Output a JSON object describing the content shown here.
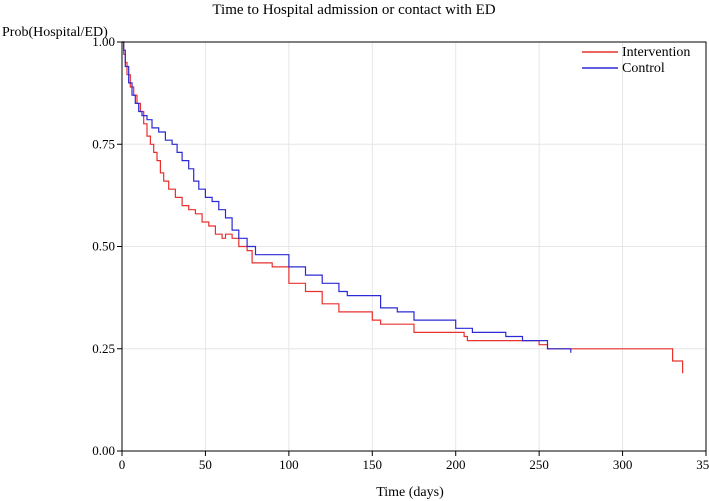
{
  "chart_data": {
    "type": "line",
    "step": true,
    "title": "Time to Hospital admission or contact with ED",
    "xlabel": "Time (days)",
    "ylabel": "Prob(Hospital/ED)",
    "xlim": [
      0,
      350
    ],
    "ylim": [
      0,
      1
    ],
    "xticks": [
      0,
      50,
      100,
      150,
      200,
      250,
      300,
      350
    ],
    "yticks": [
      "0.00",
      "0.25",
      "0.50",
      "0.75",
      "1.00"
    ],
    "grid": true,
    "legend_position": "top-right",
    "series": [
      {
        "name": "Intervention",
        "color": "#e8312f",
        "x": [
          0,
          1,
          2,
          3,
          5,
          7,
          9,
          11,
          13,
          15,
          17,
          19,
          21,
          23,
          25,
          28,
          32,
          36,
          40,
          44,
          48,
          52,
          56,
          60,
          62,
          66,
          70,
          75,
          78,
          90,
          100,
          110,
          120,
          130,
          150,
          155,
          175,
          205,
          207,
          250,
          255,
          323,
          330,
          336
        ],
        "y": [
          1.0,
          0.97,
          0.95,
          0.92,
          0.89,
          0.87,
          0.85,
          0.83,
          0.8,
          0.77,
          0.75,
          0.73,
          0.71,
          0.68,
          0.66,
          0.64,
          0.62,
          0.6,
          0.59,
          0.58,
          0.56,
          0.55,
          0.53,
          0.52,
          0.53,
          0.52,
          0.5,
          0.49,
          0.46,
          0.45,
          0.41,
          0.39,
          0.36,
          0.34,
          0.32,
          0.31,
          0.29,
          0.28,
          0.27,
          0.26,
          0.25,
          0.25,
          0.22,
          0.19
        ]
      },
      {
        "name": "Control",
        "color": "#2a2ad6",
        "x": [
          0,
          1,
          2,
          4,
          6,
          8,
          10,
          12,
          15,
          18,
          22,
          26,
          30,
          33,
          36,
          40,
          43,
          46,
          50,
          54,
          58,
          62,
          66,
          70,
          75,
          80,
          100,
          110,
          120,
          130,
          135,
          155,
          165,
          175,
          200,
          210,
          230,
          240,
          255,
          269
        ],
        "y": [
          1.0,
          0.98,
          0.94,
          0.9,
          0.87,
          0.85,
          0.83,
          0.82,
          0.81,
          0.79,
          0.78,
          0.76,
          0.75,
          0.73,
          0.71,
          0.69,
          0.66,
          0.64,
          0.62,
          0.61,
          0.59,
          0.57,
          0.54,
          0.52,
          0.5,
          0.48,
          0.45,
          0.43,
          0.41,
          0.39,
          0.38,
          0.35,
          0.34,
          0.32,
          0.3,
          0.29,
          0.28,
          0.27,
          0.25,
          0.24
        ]
      }
    ]
  }
}
